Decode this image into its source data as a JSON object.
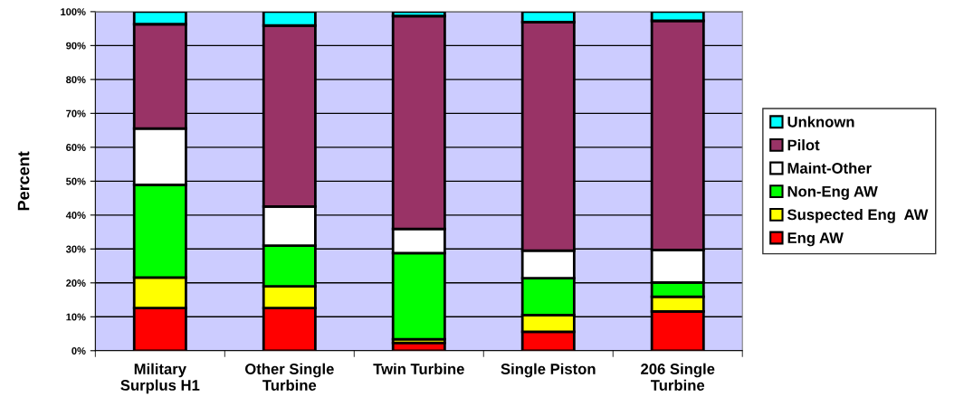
{
  "chart_data": {
    "type": "bar",
    "stacked": true,
    "ylabel": "Percent",
    "categories": [
      "Military\nSurplus H1",
      "Other Single\nTurbine",
      "Twin Turbine",
      "Single Piston",
      "206 Single\nTurbine"
    ],
    "series": [
      {
        "name": "Eng AW",
        "color": "#ff0000",
        "values": [
          12.6,
          12.6,
          2.3,
          5.6,
          11.6
        ]
      },
      {
        "name": "Suspected Eng  AW",
        "color": "#ffff00",
        "values": [
          9.0,
          6.4,
          1.1,
          4.9,
          4.3
        ]
      },
      {
        "name": "Non-Eng AW",
        "color": "#00ff00",
        "values": [
          27.3,
          12.0,
          25.4,
          10.9,
          4.2
        ]
      },
      {
        "name": "Maint-Other",
        "color": "#ffffff",
        "values": [
          16.6,
          11.5,
          7.1,
          8.1,
          9.6
        ]
      },
      {
        "name": "Pilot",
        "color": "#993366",
        "values": [
          30.8,
          53.4,
          62.8,
          67.4,
          67.6
        ]
      },
      {
        "name": "Unknown",
        "color": "#00ffff",
        "values": [
          3.7,
          4.1,
          1.3,
          3.1,
          2.7
        ]
      }
    ],
    "ylim": [
      0,
      100
    ],
    "yticks": [
      {
        "value": 0,
        "label": "0%"
      },
      {
        "value": 10,
        "label": "10%"
      },
      {
        "value": 20,
        "label": "20%"
      },
      {
        "value": 30,
        "label": "30%"
      },
      {
        "value": 40,
        "label": "40%"
      },
      {
        "value": 50,
        "label": "50%"
      },
      {
        "value": 60,
        "label": "60%"
      },
      {
        "value": 70,
        "label": "70%"
      },
      {
        "value": 80,
        "label": "80%"
      },
      {
        "value": 90,
        "label": "90%"
      },
      {
        "value": 100,
        "label": "100%"
      }
    ],
    "grid": "y",
    "legend": "right"
  }
}
